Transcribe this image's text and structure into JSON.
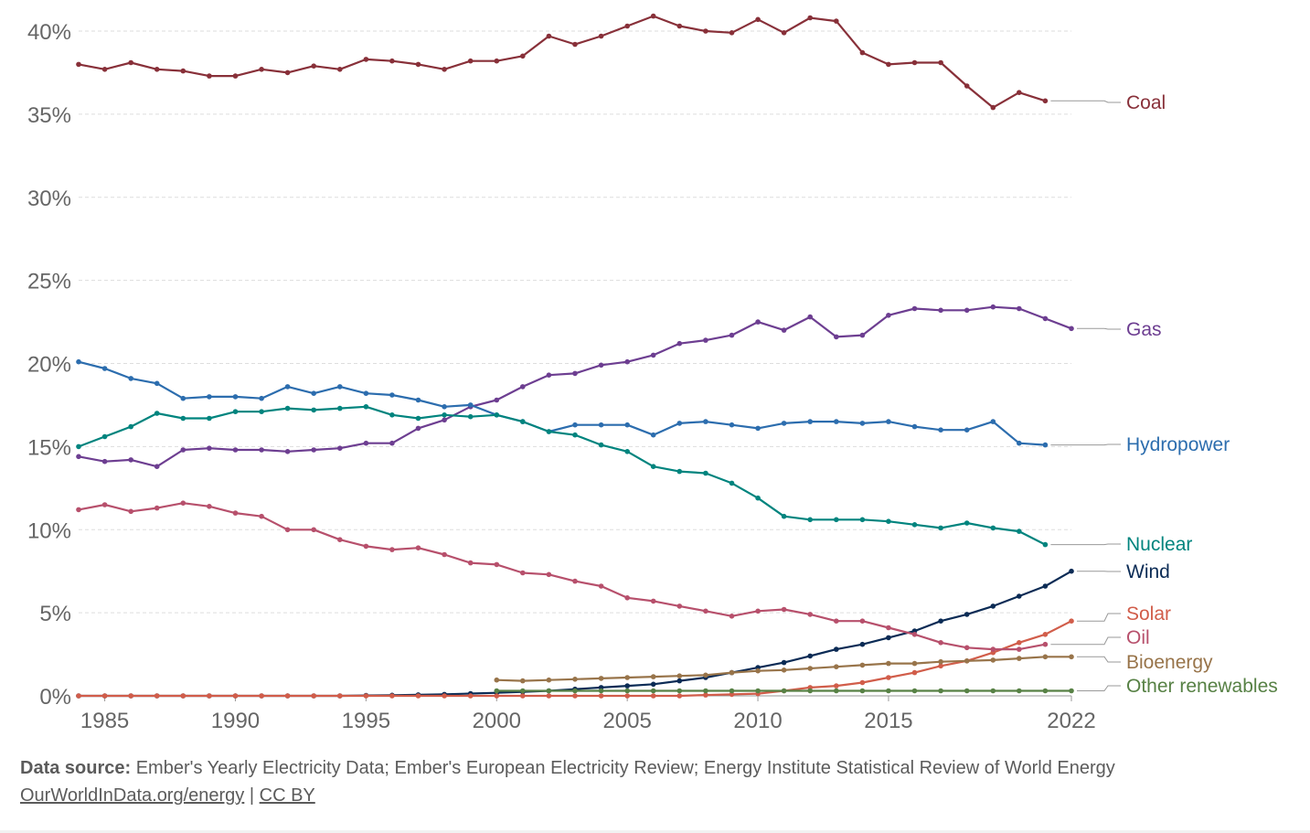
{
  "chart_data": {
    "type": "line",
    "ylim": [
      0,
      40
    ],
    "xlim": [
      1984,
      2022
    ],
    "y_ticks": [
      "0%",
      "5%",
      "10%",
      "15%",
      "20%",
      "25%",
      "30%",
      "35%",
      "40%"
    ],
    "y_tick_values": [
      0,
      5,
      10,
      15,
      20,
      25,
      30,
      35,
      40
    ],
    "x_ticks": [
      "1985",
      "1990",
      "1995",
      "2000",
      "2005",
      "2010",
      "2015",
      "2022"
    ],
    "x_tick_values": [
      1985,
      1990,
      1995,
      2000,
      2005,
      2010,
      2015,
      2022
    ],
    "grid": true,
    "series": [
      {
        "name": "Coal",
        "color": "#883039",
        "x_start": 1984,
        "values": [
          38.0,
          37.7,
          38.1,
          37.7,
          37.6,
          37.3,
          37.3,
          37.7,
          37.5,
          37.9,
          37.7,
          38.3,
          38.2,
          38.0,
          37.7,
          38.2,
          38.2,
          38.5,
          39.7,
          39.2,
          39.7,
          40.3,
          40.9,
          40.3,
          40.0,
          39.9,
          40.7,
          39.9,
          40.8,
          40.6,
          38.7,
          38.0,
          38.1,
          38.1,
          36.7,
          35.4,
          36.3,
          35.8
        ]
      },
      {
        "name": "Gas",
        "color": "#6D3E91",
        "x_start": 1984,
        "values": [
          14.4,
          14.1,
          14.2,
          13.8,
          14.8,
          14.9,
          14.8,
          14.8,
          14.7,
          14.8,
          14.9,
          15.2,
          15.2,
          16.1,
          16.6,
          17.4,
          17.8,
          18.6,
          19.3,
          19.4,
          19.9,
          20.1,
          20.5,
          21.2,
          21.4,
          21.7,
          22.5,
          22.0,
          22.8,
          21.6,
          21.7,
          22.9,
          23.3,
          23.2,
          23.2,
          23.4,
          23.3,
          22.7,
          22.1
        ]
      },
      {
        "name": "Hydropower",
        "color": "#2C6DAE",
        "x_start": 1984,
        "values": [
          20.1,
          19.7,
          19.1,
          18.8,
          17.9,
          18.0,
          18.0,
          17.9,
          18.6,
          18.2,
          18.6,
          18.2,
          18.1,
          17.8,
          17.4,
          17.5,
          16.9,
          16.5,
          15.9,
          16.3,
          16.3,
          16.3,
          15.7,
          16.4,
          16.5,
          16.3,
          16.1,
          16.4,
          16.5,
          16.5,
          16.4,
          16.5,
          16.2,
          16.0,
          16.0,
          16.5,
          15.2,
          15.1
        ]
      },
      {
        "name": "Nuclear",
        "color": "#00847E",
        "x_start": 1984,
        "values": [
          15.0,
          15.6,
          16.2,
          17.0,
          16.7,
          16.7,
          17.1,
          17.1,
          17.3,
          17.2,
          17.3,
          17.4,
          16.9,
          16.7,
          16.9,
          16.8,
          16.9,
          16.5,
          15.9,
          15.7,
          15.1,
          14.7,
          13.8,
          13.5,
          13.4,
          12.8,
          11.9,
          10.8,
          10.6,
          10.6,
          10.6,
          10.5,
          10.3,
          10.1,
          10.4,
          10.1,
          9.9,
          9.1
        ]
      },
      {
        "name": "Wind",
        "color": "#0B2B55",
        "x_start": 1984,
        "values": [
          0,
          0,
          0,
          0,
          0,
          0,
          0,
          0,
          0,
          0,
          0,
          0.02,
          0.04,
          0.06,
          0.09,
          0.14,
          0.18,
          0.24,
          0.3,
          0.4,
          0.5,
          0.6,
          0.7,
          0.9,
          1.1,
          1.4,
          1.7,
          2.0,
          2.4,
          2.8,
          3.1,
          3.5,
          3.9,
          4.5,
          4.9,
          5.4,
          6.0,
          6.6,
          7.5
        ]
      },
      {
        "name": "Solar",
        "color": "#D15D4A",
        "x_start": 1984,
        "values": [
          0,
          0,
          0,
          0,
          0,
          0,
          0,
          0,
          0,
          0,
          0,
          0,
          0,
          0,
          0,
          0,
          0,
          0,
          0,
          0,
          0,
          0,
          0,
          0,
          0.05,
          0.09,
          0.13,
          0.3,
          0.5,
          0.6,
          0.8,
          1.1,
          1.4,
          1.8,
          2.1,
          2.6,
          3.2,
          3.7,
          4.5
        ]
      },
      {
        "name": "Oil",
        "color": "#B7506C",
        "x_start": 1984,
        "values": [
          11.2,
          11.5,
          11.1,
          11.3,
          11.6,
          11.4,
          11.0,
          10.8,
          10.0,
          10.0,
          9.4,
          9.0,
          8.8,
          8.9,
          8.5,
          8.0,
          7.9,
          7.4,
          7.3,
          6.9,
          6.6,
          5.9,
          5.7,
          5.4,
          5.1,
          4.8,
          5.1,
          5.2,
          4.9,
          4.5,
          4.5,
          4.1,
          3.7,
          3.2,
          2.9,
          2.8,
          2.8,
          3.1
        ]
      },
      {
        "name": "Bioenergy",
        "color": "#98744A",
        "x_start": 2000,
        "values": [
          0.95,
          0.9,
          0.95,
          1.0,
          1.05,
          1.1,
          1.15,
          1.2,
          1.25,
          1.4,
          1.5,
          1.55,
          1.65,
          1.75,
          1.85,
          1.95,
          1.95,
          2.05,
          2.1,
          2.15,
          2.25,
          2.35,
          2.35
        ]
      },
      {
        "name": "Other renewables",
        "color": "#578145",
        "x_start": 2000,
        "values": [
          0.3,
          0.3,
          0.3,
          0.3,
          0.3,
          0.3,
          0.3,
          0.3,
          0.3,
          0.3,
          0.3,
          0.3,
          0.3,
          0.3,
          0.3,
          0.3,
          0.3,
          0.3,
          0.3,
          0.3,
          0.3,
          0.3,
          0.3
        ]
      }
    ]
  },
  "footer": {
    "source_label": "Data source:",
    "source_text": "Ember's Yearly Electricity Data; Ember's European Electricity Review; Energy Institute Statistical Review of World Energy",
    "link_owid": "OurWorldInData.org/energy",
    "separator": "|",
    "link_license": "CC BY"
  }
}
